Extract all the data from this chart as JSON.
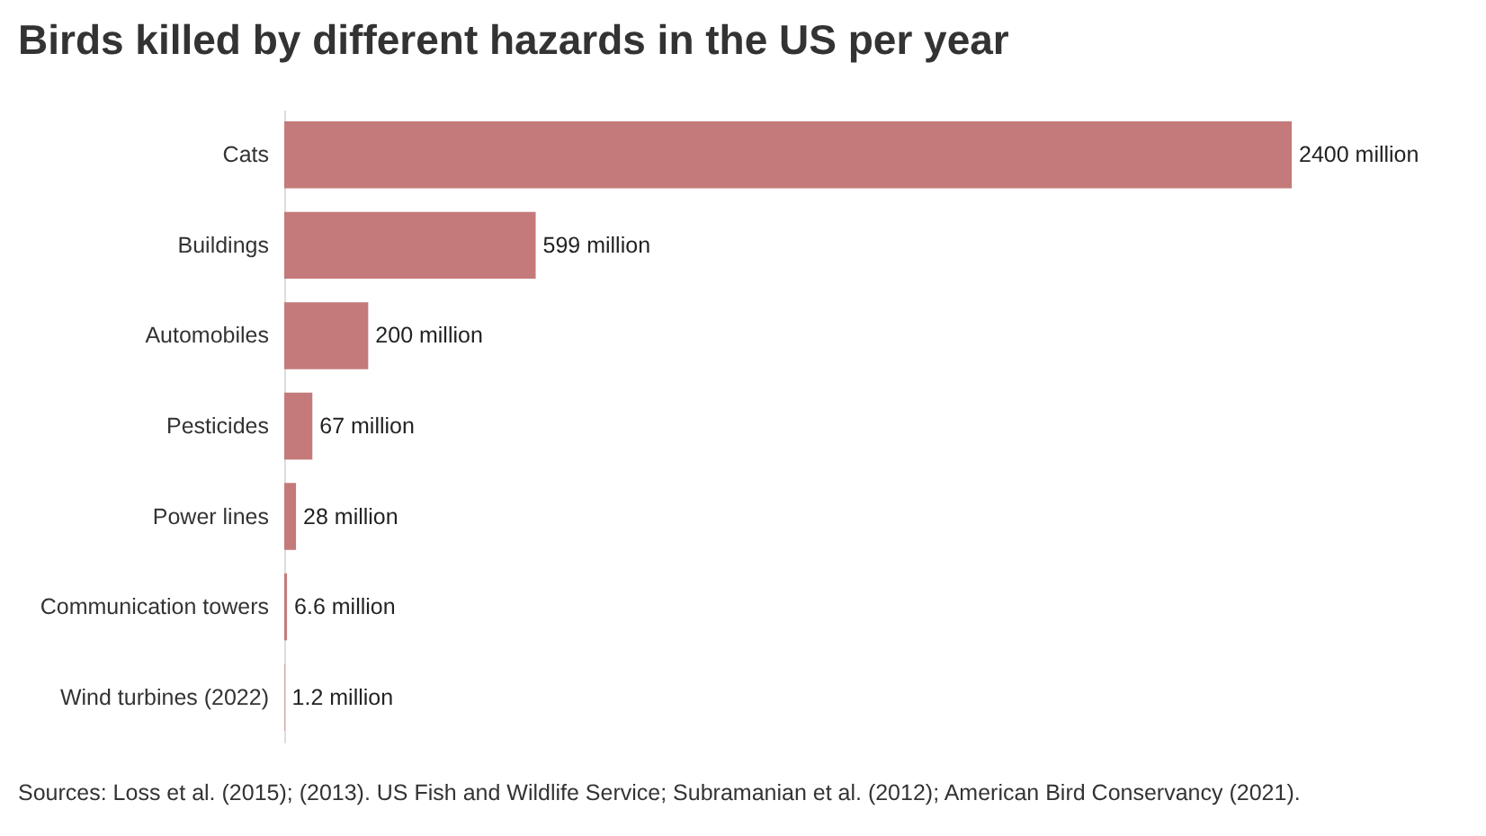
{
  "chart_data": {
    "type": "bar",
    "orientation": "horizontal",
    "title": "Birds killed by different hazards in the US per year",
    "categories": [
      "Cats",
      "Buildings",
      "Automobiles",
      "Pesticides",
      "Power lines",
      "Communication towers",
      "Wind turbines (2022)"
    ],
    "values": [
      2400,
      599,
      200,
      67,
      28,
      6.6,
      1.2
    ],
    "value_labels": [
      "2400 million",
      "599 million",
      "200 million",
      "67 million",
      "28 million",
      "6.6 million",
      "1.2 million"
    ],
    "color": "#c47a7a",
    "annotations": [
      "Sources: Loss et al. (2015); (2013). US Fish and Wildlife Service; Subramanian et al. (2012); American Bird Conservancy (2021)."
    ]
  }
}
